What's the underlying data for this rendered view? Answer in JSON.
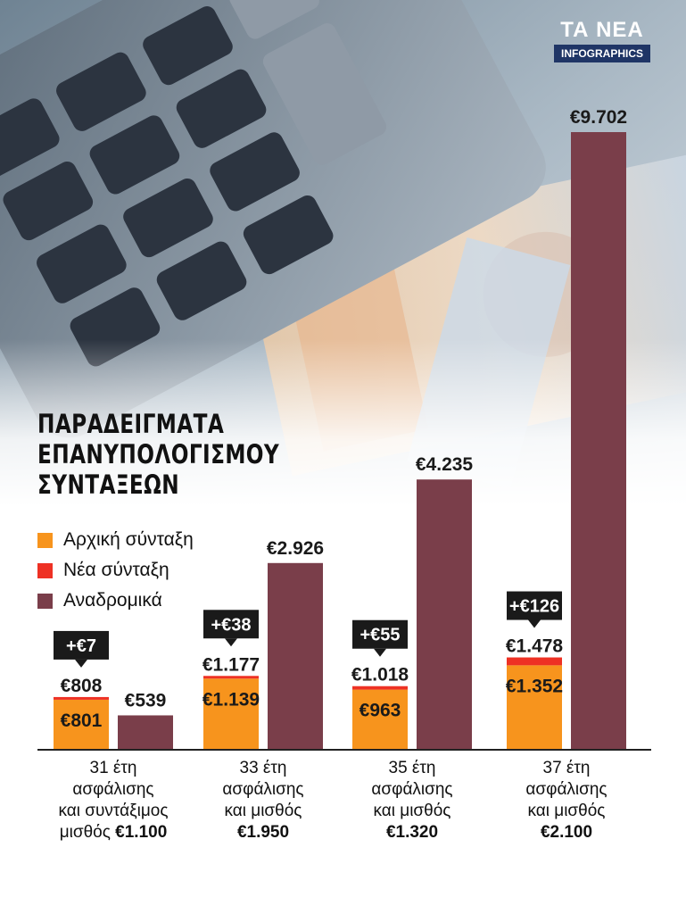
{
  "brand": {
    "name": "ΤΑ ΝΕΑ",
    "sub": "INFOGRAPHICS"
  },
  "title_lines": [
    "ΠΑΡΑΔΕΙΓΜΑΤΑ",
    "ΕΠΑΝΥΠΟΛΟΓΙΣΜΟΥ",
    "ΣΥΝΤΑΞΕΩΝ"
  ],
  "legend": [
    {
      "label": "Αρχική σύνταξη",
      "color": "#f7941d"
    },
    {
      "label": "Νέα σύνταξη",
      "color": "#ee3124"
    },
    {
      "label": "Αναδρομικά",
      "color": "#7a3e4a"
    }
  ],
  "colors": {
    "orange": "#f7941d",
    "red": "#ee3124",
    "maroon": "#7a3e4a",
    "callout": "#1a1a1a"
  },
  "chart_data": {
    "type": "bar",
    "title": "ΠΑΡΑΔΕΙΓΜΑΤΑ ΕΠΑΝΥΠΟΛΟΓΙΣΜΟΥ ΣΥΝΤΑΞΕΩΝ",
    "categories": [
      "31 έτη ασφάλισης και συντάξιμος μισθός €1.100",
      "33 έτη ασφάλισης και μισθός €1.950",
      "35 έτη ασφάλισης και μισθός €1.320",
      "37 έτη ασφάλισης και μισθός €2.100"
    ],
    "series": [
      {
        "name": "Αρχική σύνταξη",
        "values": [
          801,
          1139,
          963,
          1352
        ],
        "labels": [
          "€801",
          "€1.139",
          "€963",
          "€1.352"
        ]
      },
      {
        "name": "Νέα σύνταξη",
        "values": [
          808,
          1177,
          1018,
          1478
        ],
        "labels": [
          "€808",
          "€1.177",
          "€1.018",
          "€1.478"
        ]
      },
      {
        "name": "Αναδρομικά",
        "values": [
          539,
          2926,
          4235,
          9702
        ],
        "labels": [
          "€539",
          "€2.926",
          "€4.235",
          "€9.702"
        ]
      }
    ],
    "increase_labels": [
      "+€7",
      "+€38",
      "+€55",
      "+€126"
    ],
    "category_lines": [
      {
        "lines": [
          "31 έτη",
          "ασφάλισης",
          "και συντάξιμος"
        ],
        "last_plain": "μισθός",
        "last_bold": "€1.100"
      },
      {
        "lines": [
          "33 έτη",
          "ασφάλισης",
          "και μισθός"
        ],
        "last_plain": "",
        "last_bold": "€1.950"
      },
      {
        "lines": [
          "35 έτη",
          "ασφάλισης",
          "και μισθός"
        ],
        "last_plain": "",
        "last_bold": "€1.320"
      },
      {
        "lines": [
          "37 έτη",
          "ασφάλισης",
          "και μισθός"
        ],
        "last_plain": "",
        "last_bold": "€2.100"
      }
    ],
    "legend_position": "left, under title",
    "grid": false
  }
}
